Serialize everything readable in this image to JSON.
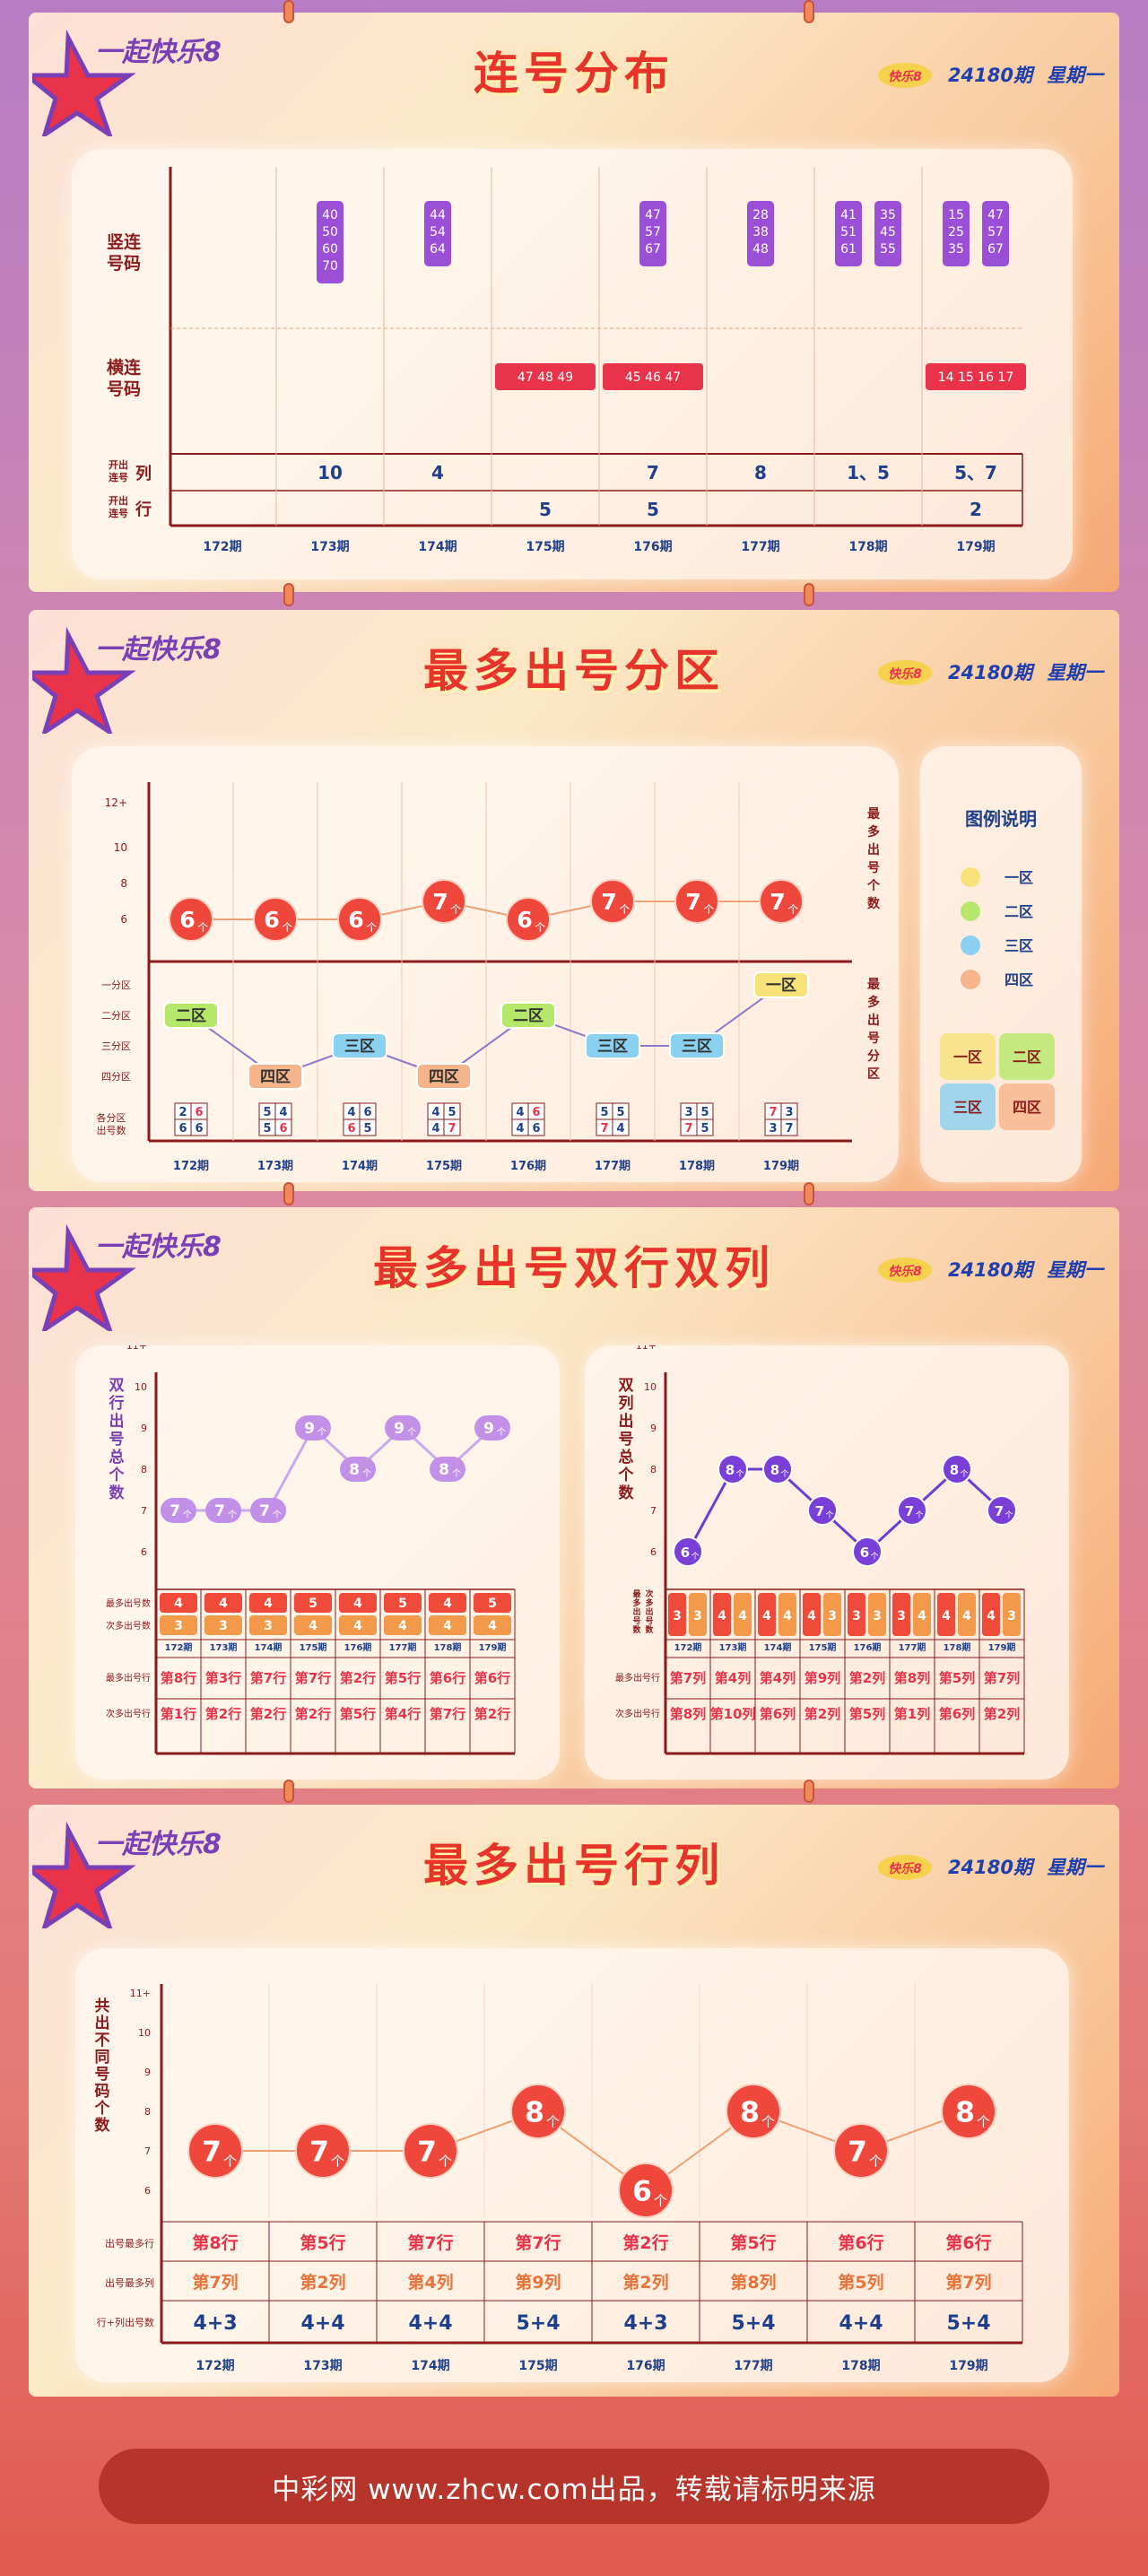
{
  "brand": {
    "logo_text": "一起快乐8"
  },
  "header": {
    "issue": "24180期",
    "weekday": "星期一"
  },
  "sections": [
    {
      "title": "连号分布"
    },
    {
      "title": "最多出号分区"
    },
    {
      "title": "最多出号双行双列"
    },
    {
      "title": "最多出号行列"
    }
  ],
  "footer": {
    "text": "中彩网 www.zhcw.com出品，转载请标明来源"
  },
  "chart_data": [
    {
      "type": "table",
      "title": "连号分布",
      "periods": [
        "172期",
        "173期",
        "174期",
        "175期",
        "176期",
        "177期",
        "178期",
        "179期"
      ],
      "row_labels": {
        "vertical": "竖连号码",
        "horizontal": "横连号码",
        "col_count": "开出连号列",
        "row_count": "开出连号行"
      },
      "vertical_runs": [
        [],
        [
          [
            "40",
            "50",
            "60",
            "70"
          ]
        ],
        [
          [
            "44",
            "54",
            "64"
          ]
        ],
        [],
        [
          [
            "47",
            "57",
            "67"
          ]
        ],
        [
          [
            "28",
            "38",
            "48"
          ]
        ],
        [
          [
            "41",
            "51",
            "61"
          ],
          [
            "35",
            "45",
            "55"
          ]
        ],
        [
          [
            "15",
            "25",
            "35"
          ],
          [
            "47",
            "57",
            "67"
          ]
        ]
      ],
      "horizontal_runs": [
        "",
        "",
        "",
        "47 48 49",
        "45 46 47",
        "",
        "",
        "14 15 16 17"
      ],
      "col_count": [
        "",
        "10",
        "4",
        "",
        "7",
        "8",
        "1、5",
        "5、7"
      ],
      "row_count": [
        "",
        "",
        "",
        "5",
        "5",
        "",
        "",
        "2"
      ]
    },
    {
      "type": "line",
      "title": "最多出号分区",
      "x": [
        "172期",
        "173期",
        "174期",
        "175期",
        "176期",
        "177期",
        "178期",
        "179期"
      ],
      "y_axis_label": "最多出号个数",
      "y_ticks": [
        "6",
        "8",
        "10",
        "12+"
      ],
      "counts": [
        6,
        6,
        6,
        7,
        6,
        7,
        7,
        7
      ],
      "count_unit": "个",
      "zone_axis_label": "最多出号分区",
      "zone_ticks": [
        "一分区",
        "二分区",
        "三分区",
        "四分区"
      ],
      "zones": [
        "二区",
        "四区",
        "三区",
        "四区",
        "二区",
        "三区",
        "三区",
        "一区"
      ],
      "zone_counts_label": "各分区出号数",
      "zone_counts": [
        [
          "2",
          "6",
          "6",
          "6"
        ],
        [
          "5",
          "4",
          "5",
          "6"
        ],
        [
          "4",
          "6",
          "6",
          "5"
        ],
        [
          "4",
          "5",
          "4",
          "7"
        ],
        [
          "4",
          "6",
          "4",
          "6"
        ],
        [
          "5",
          "5",
          "7",
          "4"
        ],
        [
          "3",
          "5",
          "7",
          "5"
        ],
        [
          "7",
          "3",
          "3",
          "7"
        ]
      ],
      "legend": {
        "title": "图例说明",
        "items": [
          {
            "name": "一区",
            "color": "#f7e27a"
          },
          {
            "name": "二区",
            "color": "#b5e86a"
          },
          {
            "name": "三区",
            "color": "#8ad0f0"
          },
          {
            "name": "四区",
            "color": "#f5b48a"
          }
        ]
      },
      "grid_labels": [
        "一区",
        "二区",
        "三区",
        "四区"
      ]
    },
    {
      "type": "line",
      "title": "双行",
      "x": [
        "172期",
        "173期",
        "174期",
        "175期",
        "176期",
        "177期",
        "178期",
        "179期"
      ],
      "y_axis_label": "双行出号总个数",
      "y_ticks": [
        "6",
        "7",
        "8",
        "9",
        "10",
        "11+"
      ],
      "values": [
        7,
        7,
        7,
        9,
        8,
        9,
        8,
        9
      ],
      "unit": "个",
      "most_label": "最多出号数",
      "second_label": "次多出号数",
      "most": [
        "4",
        "4",
        "4",
        "5",
        "4",
        "5",
        "4",
        "5"
      ],
      "second": [
        "3",
        "3",
        "3",
        "4",
        "4",
        "4",
        "4",
        "4"
      ],
      "row1_label": "最多出号行",
      "row2_label": "次多出号行",
      "row1": [
        "第8行",
        "第3行",
        "第7行",
        "第7行",
        "第2行",
        "第5行",
        "第6行",
        "第6行"
      ],
      "row2": [
        "第1行",
        "第2行",
        "第2行",
        "第2行",
        "第5行",
        "第4行",
        "第7行",
        "第2行"
      ]
    },
    {
      "type": "line",
      "title": "双列",
      "x": [
        "172期",
        "173期",
        "174期",
        "175期",
        "176期",
        "177期",
        "178期",
        "179期"
      ],
      "y_axis_label": "双列出号总个数",
      "y_ticks": [
        "6",
        "7",
        "8",
        "9",
        "10",
        "11+"
      ],
      "values": [
        6,
        8,
        8,
        7,
        6,
        7,
        8,
        7
      ],
      "unit": "个",
      "pair_label": "最多出号数 次多出号数",
      "pairs": [
        [
          "3",
          "3"
        ],
        [
          "4",
          "4"
        ],
        [
          "4",
          "4"
        ],
        [
          "4",
          "3"
        ],
        [
          "3",
          "3"
        ],
        [
          "3",
          "4"
        ],
        [
          "4",
          "4"
        ],
        [
          "4",
          "3"
        ]
      ],
      "col1_label": "最多出号行",
      "col2_label": "次多出号行",
      "col1": [
        "第7列",
        "第4列",
        "第4列",
        "第9列",
        "第2列",
        "第8列",
        "第5列",
        "第7列"
      ],
      "col2": [
        "第8列",
        "第10列",
        "第6列",
        "第2列",
        "第5列",
        "第1列",
        "第6列",
        "第2列"
      ]
    },
    {
      "type": "line",
      "title": "最多出号行列",
      "x": [
        "172期",
        "173期",
        "174期",
        "175期",
        "176期",
        "177期",
        "178期",
        "179期"
      ],
      "y_axis_label": "共出不同号码个数",
      "y_ticks": [
        "6",
        "7",
        "8",
        "9",
        "10",
        "11+"
      ],
      "values": [
        7,
        7,
        7,
        8,
        6,
        8,
        7,
        8
      ],
      "unit": "个",
      "row_label": "出号最多行",
      "col_label": "出号最多列",
      "sum_label": "行+列出号数",
      "rows": [
        "第8行",
        "第5行",
        "第7行",
        "第7行",
        "第2行",
        "第5行",
        "第6行",
        "第6行"
      ],
      "cols": [
        "第7列",
        "第2列",
        "第4列",
        "第9列",
        "第2列",
        "第8列",
        "第5列",
        "第7列"
      ],
      "sums": [
        "4+3",
        "4+4",
        "4+4",
        "5+4",
        "4+3",
        "5+4",
        "4+4",
        "5+4"
      ]
    }
  ]
}
